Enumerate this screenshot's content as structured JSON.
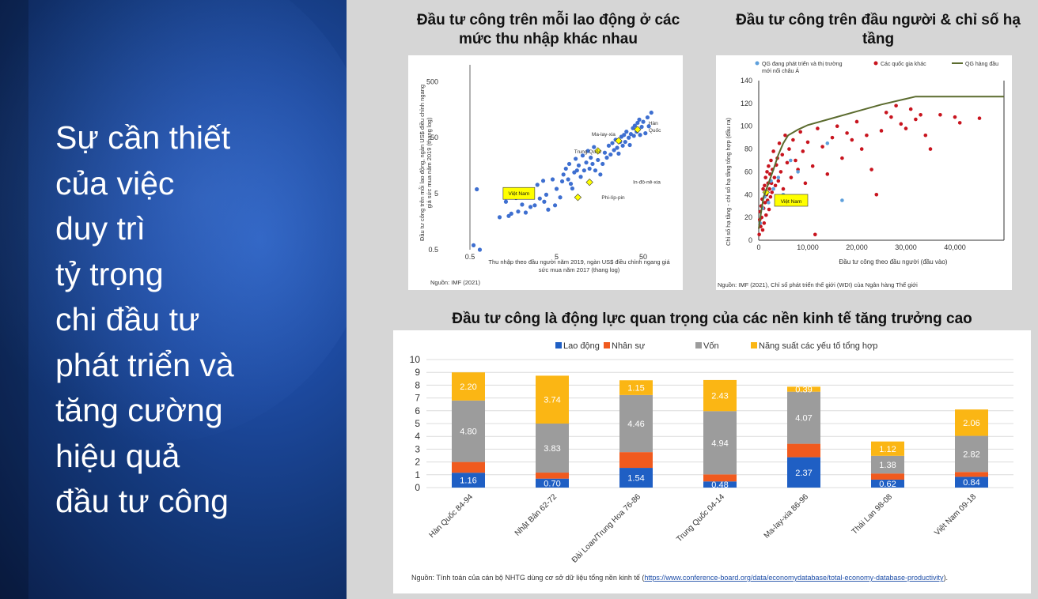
{
  "slide": {
    "heading_lines": [
      "Sự cần thiết",
      "của việc",
      "duy trì",
      "tỷ trọng",
      "chi đầu tư",
      "phát triển và",
      "tăng cường",
      "hiệu quả",
      "đầu tư công"
    ]
  },
  "colors": {
    "labor": "#1f5fc4",
    "human_capital": "#f05a1e",
    "capital": "#9c9c9c",
    "tfp": "#fbb614",
    "scatter_blue": "#3e6fd0",
    "red_dot": "#c8141e",
    "frontier": "#5b6b2e"
  },
  "chart_data": [
    {
      "id": "chart1",
      "type": "scatter",
      "title": "Đầu tư công trên mỗi lao động ở các mức thu nhập khác nhau",
      "xlabel": "Thu nhập theo đầu người năm 2019, ngàn US$ điều chỉnh ngang giá sức mua năm 2017 (thang log)",
      "ylabel": "Đầu tư công trên mỗi lao động, ngàn US$ điều chỉnh ngang giá sức mua năm 2019 (thang log)",
      "x_scale": "log",
      "y_scale": "log",
      "xlim": [
        0.5,
        100
      ],
      "ylim": [
        0.5,
        1000
      ],
      "x_ticks": [
        "0.5",
        "5",
        "50"
      ],
      "y_ticks": [
        "0.5",
        "5",
        "50",
        "500"
      ],
      "source": "Nguồn: IMF (2021)",
      "highlights": [
        {
          "label": "Việt Nam",
          "x": 8,
          "y": 4.1
        },
        {
          "label": "Trung Quốc",
          "x": 15,
          "y": 29
        },
        {
          "label": "Ma-lay-xia",
          "x": 26,
          "y": 44
        },
        {
          "label": "Hàn Quốc",
          "x": 43,
          "y": 70
        },
        {
          "label": "In-đô-nê-xia",
          "x": 12,
          "y": 8
        },
        {
          "label": "Phi-líp-pin",
          "x": 8.8,
          "y": 4.3
        }
      ],
      "points": [
        [
          0.55,
          0.6
        ],
        [
          0.6,
          6
        ],
        [
          0.65,
          0.5
        ],
        [
          1.1,
          1.9
        ],
        [
          1.3,
          3.6
        ],
        [
          1.4,
          2
        ],
        [
          1.5,
          2.2
        ],
        [
          1.7,
          4.2
        ],
        [
          1.8,
          2.4
        ],
        [
          2,
          3.2
        ],
        [
          2.2,
          2.3
        ],
        [
          2.5,
          2.9
        ],
        [
          2.6,
          4.8
        ],
        [
          2.8,
          3.1
        ],
        [
          3,
          7.2
        ],
        [
          3.2,
          4.1
        ],
        [
          3.5,
          8.5
        ],
        [
          3.6,
          3.6
        ],
        [
          3.8,
          4.8
        ],
        [
          4,
          2.6
        ],
        [
          4.5,
          9
        ],
        [
          4.8,
          3.1
        ],
        [
          5,
          6.1
        ],
        [
          5.5,
          4.3
        ],
        [
          5.8,
          8.3
        ],
        [
          6,
          11
        ],
        [
          6.4,
          14
        ],
        [
          6.8,
          9
        ],
        [
          7,
          17
        ],
        [
          7.3,
          7.5
        ],
        [
          7.6,
          6.2
        ],
        [
          8,
          12
        ],
        [
          8.3,
          21
        ],
        [
          8.6,
          13
        ],
        [
          9,
          16
        ],
        [
          9.5,
          10
        ],
        [
          10,
          24
        ],
        [
          10.4,
          13
        ],
        [
          11,
          18
        ],
        [
          11.5,
          29
        ],
        [
          12,
          14
        ],
        [
          12.4,
          22
        ],
        [
          13,
          17
        ],
        [
          13.5,
          34
        ],
        [
          14,
          13
        ],
        [
          15,
          20
        ],
        [
          16,
          11
        ],
        [
          17,
          17
        ],
        [
          18,
          27
        ],
        [
          19,
          22
        ],
        [
          20,
          36
        ],
        [
          21,
          25
        ],
        [
          22,
          40
        ],
        [
          23,
          30
        ],
        [
          24,
          46
        ],
        [
          25,
          33
        ],
        [
          26,
          26
        ],
        [
          27,
          42
        ],
        [
          28,
          52
        ],
        [
          29,
          36
        ],
        [
          30,
          56
        ],
        [
          31,
          42
        ],
        [
          32,
          64
        ],
        [
          34,
          50
        ],
        [
          35,
          37
        ],
        [
          36,
          58
        ],
        [
          38,
          74
        ],
        [
          39,
          54
        ],
        [
          40,
          82
        ],
        [
          42,
          64
        ],
        [
          43,
          92
        ],
        [
          44,
          70
        ],
        [
          45,
          105
        ],
        [
          46,
          56
        ],
        [
          48,
          78
        ],
        [
          50,
          96
        ],
        [
          53,
          60
        ],
        [
          56,
          115
        ],
        [
          58,
          80
        ],
        [
          62,
          140
        ]
      ]
    },
    {
      "id": "chart2",
      "type": "scatter",
      "title": "Đầu tư công trên đầu người & chỉ số hạ tầng",
      "xlabel": "Đầu tư công theo đầu người (đầu vào)",
      "ylabel": "Chỉ số hạ tầng - chỉ số hạ tầng tổng hợp (đầu ra)",
      "xlim": [
        0,
        50000
      ],
      "ylim": [
        0,
        140
      ],
      "x_ticks": [
        "0",
        "10,000",
        "20,000",
        "30,000",
        "40,000"
      ],
      "y_ticks": [
        "0",
        "20",
        "40",
        "60",
        "80",
        "100",
        "120",
        "140"
      ],
      "legend": [
        "QG đang phát triển và thị trường mới nổi châu Á",
        "Các quốc gia khác",
        "QG hàng đầu"
      ],
      "legend_position": "top",
      "annotation": "Việt Nam",
      "source": "Nguồn: IMF (2021),  Chỉ số phát triển thế giới (WDI) của Ngân hàng Thế giới",
      "series": [
        {
          "name": "QG đang phát triển và thị trường mới nổi châu Á",
          "points": [
            [
              300,
              15
            ],
            [
              800,
              28
            ],
            [
              1200,
              38
            ],
            [
              1500,
              42
            ],
            [
              2000,
              33
            ],
            [
              2500,
              52
            ],
            [
              3000,
              45
            ],
            [
              4000,
              55
            ],
            [
              5000,
              40
            ],
            [
              6500,
              70
            ],
            [
              8000,
              60
            ],
            [
              14000,
              85
            ],
            [
              17000,
              35
            ]
          ]
        },
        {
          "name": "Các quốc gia khác",
          "points": [
            [
              100,
              5
            ],
            [
              200,
              18
            ],
            [
              300,
              25
            ],
            [
              400,
              12
            ],
            [
              500,
              30
            ],
            [
              600,
              20
            ],
            [
              700,
              36
            ],
            [
              800,
              9
            ],
            [
              900,
              45
            ],
            [
              1000,
              28
            ],
            [
              1100,
              15
            ],
            [
              1200,
              48
            ],
            [
              1300,
              33
            ],
            [
              1400,
              55
            ],
            [
              1500,
              22
            ],
            [
              1600,
              40
            ],
            [
              1700,
              60
            ],
            [
              1800,
              35
            ],
            [
              1900,
              50
            ],
            [
              2000,
              65
            ],
            [
              2100,
              27
            ],
            [
              2200,
              45
            ],
            [
              2300,
              58
            ],
            [
              2400,
              38
            ],
            [
              2500,
              70
            ],
            [
              2600,
              50
            ],
            [
              2700,
              42
            ],
            [
              2800,
              62
            ],
            [
              3000,
              78
            ],
            [
              3200,
              55
            ],
            [
              3400,
              48
            ],
            [
              3600,
              66
            ],
            [
              3800,
              72
            ],
            [
              4000,
              52
            ],
            [
              4200,
              85
            ],
            [
              4500,
              60
            ],
            [
              4800,
              75
            ],
            [
              5000,
              45
            ],
            [
              5400,
              92
            ],
            [
              5800,
              68
            ],
            [
              6200,
              80
            ],
            [
              6600,
              55
            ],
            [
              7000,
              88
            ],
            [
              7500,
              70
            ],
            [
              8000,
              62
            ],
            [
              8500,
              95
            ],
            [
              9000,
              78
            ],
            [
              9500,
              50
            ],
            [
              10000,
              86
            ],
            [
              11000,
              65
            ],
            [
              12000,
              98
            ],
            [
              13000,
              82
            ],
            [
              14000,
              58
            ],
            [
              15000,
              90
            ],
            [
              16000,
              100
            ],
            [
              17000,
              72
            ],
            [
              18000,
              94
            ],
            [
              19000,
              88
            ],
            [
              20000,
              104
            ],
            [
              21000,
              80
            ],
            [
              22000,
              92
            ],
            [
              23000,
              62
            ],
            [
              24000,
              40
            ],
            [
              25000,
              96
            ],
            [
              26000,
              112
            ],
            [
              27000,
              108
            ],
            [
              28000,
              118
            ],
            [
              29000,
              102
            ],
            [
              30000,
              98
            ],
            [
              31000,
              115
            ],
            [
              32000,
              106
            ],
            [
              33000,
              110
            ],
            [
              34000,
              92
            ],
            [
              35000,
              80
            ],
            [
              37000,
              110
            ],
            [
              40000,
              108
            ],
            [
              41000,
              103
            ],
            [
              45000,
              107
            ],
            [
              11500,
              5
            ]
          ]
        },
        {
          "name": "QG hàng đầu",
          "points": [
            [
              0,
              10
            ],
            [
              500,
              25
            ],
            [
              1000,
              38
            ],
            [
              2000,
              50
            ],
            [
              3000,
              62
            ],
            [
              4000,
              75
            ],
            [
              5000,
              85
            ],
            [
              6000,
              92
            ],
            [
              8000,
              97
            ],
            [
              10000,
              101
            ],
            [
              15000,
              107
            ],
            [
              20000,
              113
            ],
            [
              25000,
              119
            ],
            [
              32000,
              126
            ],
            [
              50000,
              126
            ]
          ]
        }
      ]
    },
    {
      "id": "chart3",
      "type": "bar",
      "title": "Đầu tư công là động lực quan trọng của các nền kinh tế tăng trưởng cao",
      "stacked": true,
      "ylim": [
        0,
        10
      ],
      "y_ticks": [
        "0",
        "1",
        "2",
        "3",
        "4",
        "5",
        "6",
        "7",
        "8",
        "9",
        "10"
      ],
      "grid": true,
      "legend_position": "top",
      "categories": [
        "Hàn Quốc 84-94",
        "Nhật Bản 62-72",
        "Đài Loan/Trung Hoa 76-86",
        "Trung Quốc 04-14",
        "Ma-lay-xia 86-96",
        "Thái Lan 98-08",
        "Việt Nam 09-18"
      ],
      "series": [
        {
          "name": "Lao động",
          "values": [
            1.16,
            0.7,
            1.54,
            0.48,
            2.37,
            0.62,
            0.84
          ]
        },
        {
          "name": "Nhân sự",
          "values": [
            0.84,
            0.47,
            1.23,
            0.55,
            1.05,
            0.48,
            0.38
          ]
        },
        {
          "name": "Vốn",
          "values": [
            4.8,
            3.83,
            4.46,
            4.94,
            4.07,
            1.38,
            2.82
          ]
        },
        {
          "name": "Năng suất các yếu tố tổng hợp",
          "values": [
            2.2,
            3.74,
            1.15,
            2.43,
            0.39,
            1.12,
            2.06
          ]
        }
      ],
      "value_labels": [
        [
          "1.16",
          "",
          "4.80",
          "2.20"
        ],
        [
          "0.70",
          "",
          "3.83",
          "3.74"
        ],
        [
          "1.54",
          "",
          "4.46",
          "1.15"
        ],
        [
          "0.48",
          "",
          "4.94",
          "2.43"
        ],
        [
          "2.37",
          "",
          "4.07",
          "0.39"
        ],
        [
          "0.62",
          "",
          "1.38",
          "1.12"
        ],
        [
          "0.84",
          "",
          "2.82",
          "2.06"
        ]
      ],
      "source_prefix": "Nguồn:  Tính toán của cán bộ NHTG dùng cơ sở dữ liệu tổng nền kinh tế (",
      "source_link": "https://www.conference-board.org/data/economydatabase/total-economy-database-productivity",
      "source_suffix": ")."
    }
  ]
}
